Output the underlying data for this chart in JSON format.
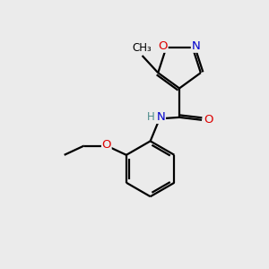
{
  "background_color": "#ebebeb",
  "atom_colors": {
    "C": "#000000",
    "N": "#0000cc",
    "O": "#dd0000",
    "H": "#4a8a8a"
  },
  "bond_color": "#000000",
  "bond_width": 1.6,
  "dbo": 0.08,
  "figsize": [
    3.0,
    3.0
  ],
  "dpi": 100
}
